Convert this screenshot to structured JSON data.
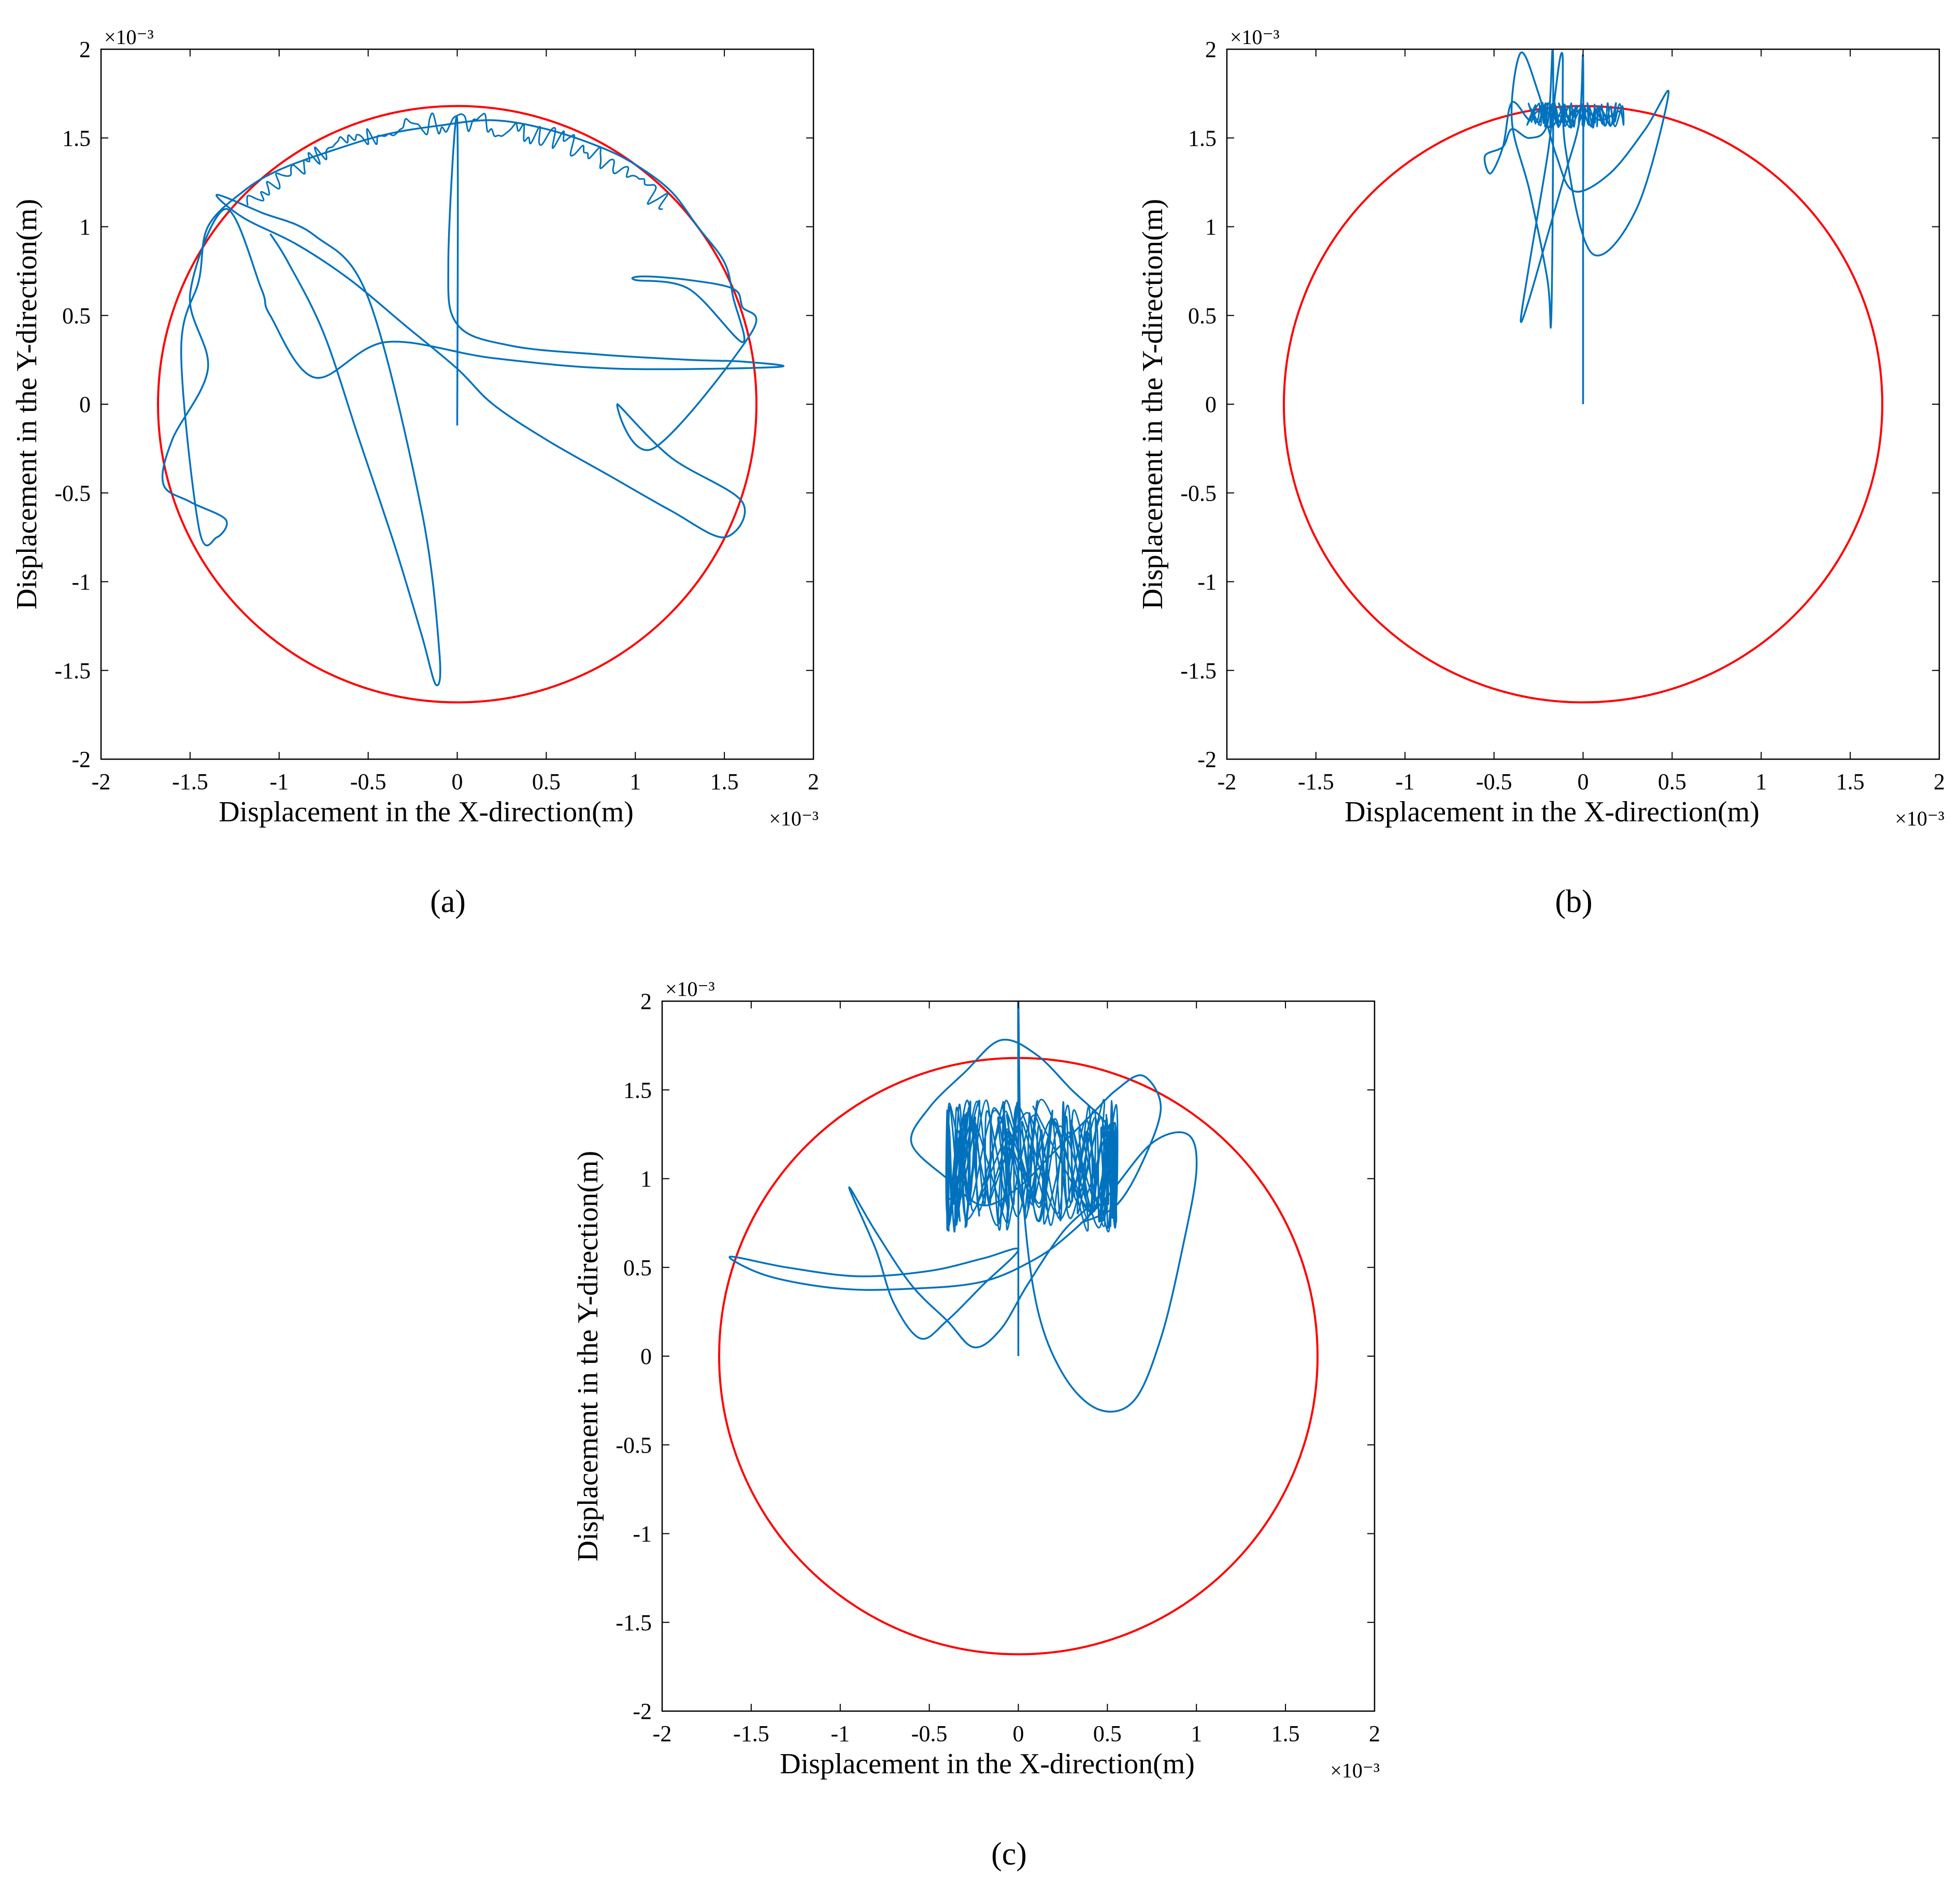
{
  "colors": {
    "trajectory": "#0072BD",
    "clearance_circle": "#FF0000",
    "axes": "#000000"
  },
  "chart_data": [
    {
      "type": "line",
      "panel_label": "(a)",
      "xlabel": "Displacement in the X-direction(m)",
      "ylabel": "Displacement in the Y-direction(m)",
      "x_exponent": "×10⁻³",
      "y_exponent": "×10⁻³",
      "xlim": [
        -2,
        2
      ],
      "ylim": [
        -2,
        2
      ],
      "xticks": [
        "-2",
        "-1.5",
        "-1",
        "-0.5",
        "0",
        "0.5",
        "1",
        "1.5",
        "2"
      ],
      "yticks": [
        "-2",
        "-1.5",
        "-1",
        "-0.5",
        "0",
        "0.5",
        "1",
        "1.5",
        "2"
      ],
      "grid": false,
      "units_scale": "1e-3 m",
      "series": [
        {
          "role": "clearance_circle",
          "kind": "circle",
          "center": [
            0,
            0
          ],
          "radius": 1.68
        },
        {
          "role": "trajectory",
          "kind": "line",
          "x": [
            0.0,
            0.0,
            -0.05,
            0.0,
            0.3,
            0.8,
            1.3,
            1.6,
            1.8,
            0.9,
            0.2,
            -0.4,
            -0.8,
            -1.05,
            -1.1,
            -1.3,
            -1.5,
            -1.4,
            -1.6,
            -1.65,
            -1.5,
            -1.3,
            -1.35,
            -1.45,
            -1.55,
            -1.45,
            -1.4,
            -1.2,
            -1.0,
            -0.7,
            -0.4,
            -0.1,
            0.2,
            0.5,
            0.8,
            1.0,
            1.2,
            1.35,
            1.5,
            1.55,
            1.6,
            1.3,
            1.0,
            1.05,
            1.3,
            1.55,
            1.6,
            1.65,
            1.1,
            0.9,
            1.2,
            1.6,
            1.5,
            1.2,
            0.85,
            0.5,
            0.2,
            0.0,
            -0.3,
            -0.6,
            -0.9,
            -1.2,
            -1.35,
            -1.1,
            -0.8,
            -0.5,
            -0.2,
            -0.1,
            -0.12,
            -0.2,
            -0.35,
            -0.55,
            -0.75,
            -0.95,
            -1.05
          ],
          "y": [
            -0.12,
            1.6,
            0.8,
            0.45,
            0.33,
            0.28,
            0.25,
            0.24,
            0.21,
            0.2,
            0.26,
            0.35,
            0.15,
            0.5,
            0.65,
            1.1,
            0.62,
            0.2,
            -0.2,
            -0.45,
            -0.55,
            -0.65,
            -0.75,
            -0.7,
            0.3,
            0.7,
            1.0,
            1.2,
            1.32,
            1.43,
            1.52,
            1.57,
            1.6,
            1.55,
            1.45,
            1.35,
            1.2,
            1.0,
            0.8,
            0.6,
            0.35,
            0.65,
            0.7,
            0.72,
            0.7,
            0.65,
            0.55,
            0.4,
            -0.25,
            0.0,
            -0.3,
            -0.55,
            -0.75,
            -0.6,
            -0.4,
            -0.2,
            0.0,
            0.2,
            0.45,
            0.7,
            0.9,
            1.05,
            1.18,
            1.08,
            0.95,
            0.6,
            -0.6,
            -1.4,
            -1.58,
            -1.3,
            -0.8,
            -0.2,
            0.4,
            0.8,
            0.96
          ]
        }
      ]
    },
    {
      "type": "line",
      "panel_label": "(b)",
      "xlabel": "Displacement in the X-direction(m)",
      "ylabel": "Displacement in the Y-direction(m)",
      "x_exponent": "×10⁻³",
      "y_exponent": "×10⁻³",
      "xlim": [
        -2,
        2
      ],
      "ylim": [
        -2,
        2
      ],
      "xticks": [
        "-2",
        "-1.5",
        "-1",
        "-0.5",
        "0",
        "0.5",
        "1",
        "1.5",
        "2"
      ],
      "yticks": [
        "-2",
        "-1.5",
        "-1",
        "-0.5",
        "0",
        "0.5",
        "1",
        "1.5",
        "2"
      ],
      "grid": false,
      "units_scale": "1e-3 m",
      "series": [
        {
          "role": "clearance_circle",
          "kind": "circle",
          "center": [
            0,
            0
          ],
          "radius": 1.68
        },
        {
          "role": "trajectory",
          "kind": "line",
          "x": [
            0.0,
            0.0,
            0.0,
            -0.02,
            -0.1,
            -0.2,
            -0.3,
            -0.35,
            -0.3,
            -0.2,
            -0.12,
            -0.1,
            0.05,
            0.3,
            0.48,
            0.35,
            0.15,
            -0.05,
            -0.15,
            -0.25,
            -0.35,
            -0.4,
            -0.3,
            -0.2,
            -0.18,
            -0.17,
            -0.17,
            -0.2,
            -0.3,
            -0.4,
            -0.45,
            -0.55,
            -0.52,
            -0.45,
            -0.4,
            -0.3,
            -0.25,
            -0.1,
            0.0,
            0.1,
            0.2,
            0.22
          ],
          "y": [
            0.0,
            1.0,
            1.95,
            1.6,
            1.3,
            0.95,
            0.6,
            0.47,
            0.8,
            1.4,
            1.98,
            1.45,
            0.85,
            1.1,
            1.75,
            1.55,
            1.3,
            1.2,
            1.4,
            1.75,
            1.98,
            1.6,
            1.2,
            0.7,
            0.45,
            1.2,
            2.0,
            1.58,
            1.5,
            1.55,
            1.45,
            1.4,
            1.3,
            1.45,
            1.7,
            1.6,
            1.65,
            1.62,
            1.66,
            1.6,
            1.65,
            1.62
          ]
        }
      ]
    },
    {
      "type": "line",
      "panel_label": "(c)",
      "xlabel": "Displacement in the X-direction(m)",
      "ylabel": "Displacement in the Y-direction(m)",
      "x_exponent": "×10⁻³",
      "y_exponent": "×10⁻³",
      "xlim": [
        -2,
        2
      ],
      "ylim": [
        -2,
        2
      ],
      "xticks": [
        "-2",
        "-1.5",
        "-1",
        "-0.5",
        "0",
        "0.5",
        "1",
        "1.5",
        "2"
      ],
      "yticks": [
        "-2",
        "-1.5",
        "-1",
        "-0.5",
        "0",
        "0.5",
        "1",
        "1.5",
        "2"
      ],
      "grid": false,
      "units_scale": "1e-3 m",
      "series": [
        {
          "role": "clearance_circle",
          "kind": "circle",
          "center": [
            0,
            0
          ],
          "radius": 1.68
        },
        {
          "role": "trajectory",
          "kind": "line",
          "x": [
            0.0,
            0.0,
            0.0,
            0.02,
            0.1,
            0.25,
            0.45,
            0.65,
            0.8,
            0.92,
            1.0,
            0.95,
            0.75,
            0.5,
            0.3,
            0.1,
            -0.2,
            -0.6,
            -1.0,
            -1.4,
            -1.62,
            -1.3,
            -0.9,
            -0.5,
            -0.2,
            0.0,
            -0.2,
            -0.4,
            -0.55,
            -0.7,
            -0.8,
            -0.95,
            -0.8,
            -0.6,
            -0.4,
            -0.25,
            -0.1,
            0.05,
            0.25,
            0.45,
            0.55,
            0.5,
            0.3,
            0.1,
            -0.1,
            -0.3,
            -0.5,
            -0.6,
            -0.4,
            -0.2,
            0.0,
            0.2,
            0.4,
            0.55,
            0.7,
            0.8,
            0.7,
            0.55,
            0.35
          ],
          "y": [
            0.0,
            1.2,
            2.0,
            1.0,
            0.3,
            -0.1,
            -0.3,
            -0.25,
            0.1,
            0.6,
            1.05,
            1.25,
            1.2,
            0.9,
            0.7,
            0.55,
            0.42,
            0.38,
            0.38,
            0.45,
            0.56,
            0.5,
            0.45,
            0.48,
            0.55,
            0.6,
            0.4,
            0.2,
            0.1,
            0.3,
            0.6,
            0.95,
            0.7,
            0.4,
            0.2,
            0.05,
            0.15,
            0.4,
            0.7,
            0.9,
            1.1,
            1.3,
            1.5,
            1.7,
            1.78,
            1.6,
            1.4,
            1.2,
            1.0,
            0.85,
            0.95,
            1.15,
            1.35,
            1.5,
            1.58,
            1.4,
            1.1,
            0.85,
            0.75
          ],
          "dense_oscillation_region": {
            "x": [
              -0.4,
              0.55
            ],
            "y": [
              0.7,
              1.45
            ]
          }
        }
      ]
    }
  ]
}
